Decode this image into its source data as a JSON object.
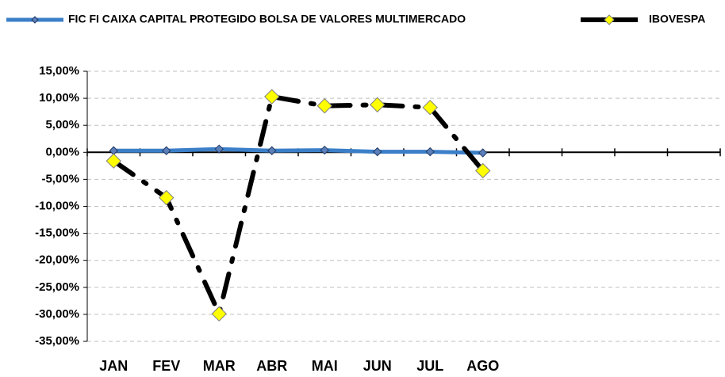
{
  "chart_data": {
    "type": "line",
    "categories": [
      "JAN",
      "FEV",
      "MAR",
      "ABR",
      "MAI",
      "JUN",
      "JUL",
      "AGO",
      null,
      null,
      null,
      null
    ],
    "series": [
      {
        "name": "FIC FI CAIXA CAPITAL PROTEGIDO BOLSA DE VALORES MULTIMERCADO",
        "color": "#3b7fc8",
        "marker_color": "#5b7fb8",
        "values": [
          0.3,
          0.3,
          0.6,
          0.3,
          0.4,
          0.1,
          0.1,
          -0.1,
          null,
          null,
          null,
          null
        ]
      },
      {
        "name": "IBOVESPA",
        "color": "#000000",
        "marker_color": "#ffff00",
        "values": [
          -1.6,
          -8.4,
          -29.9,
          10.3,
          8.6,
          8.8,
          8.3,
          -3.4,
          null,
          null,
          null,
          null
        ]
      }
    ],
    "ylim": [
      -35,
      15
    ],
    "yticks": [
      {
        "value": -35,
        "label": "-35,00%"
      },
      {
        "value": -30,
        "label": "-30,00%"
      },
      {
        "value": -25,
        "label": "-25,00%"
      },
      {
        "value": -20,
        "label": "-20,00%"
      },
      {
        "value": -15,
        "label": "-15,00%"
      },
      {
        "value": -10,
        "label": "-10,00%"
      },
      {
        "value": -5,
        "label": "-5,00%"
      },
      {
        "value": 0,
        "label": "0,00%"
      },
      {
        "value": 5,
        "label": "5,00%"
      },
      {
        "value": 10,
        "label": "10,00%"
      },
      {
        "value": 15,
        "label": "15,00%"
      }
    ],
    "grid": true,
    "legend": "top"
  }
}
